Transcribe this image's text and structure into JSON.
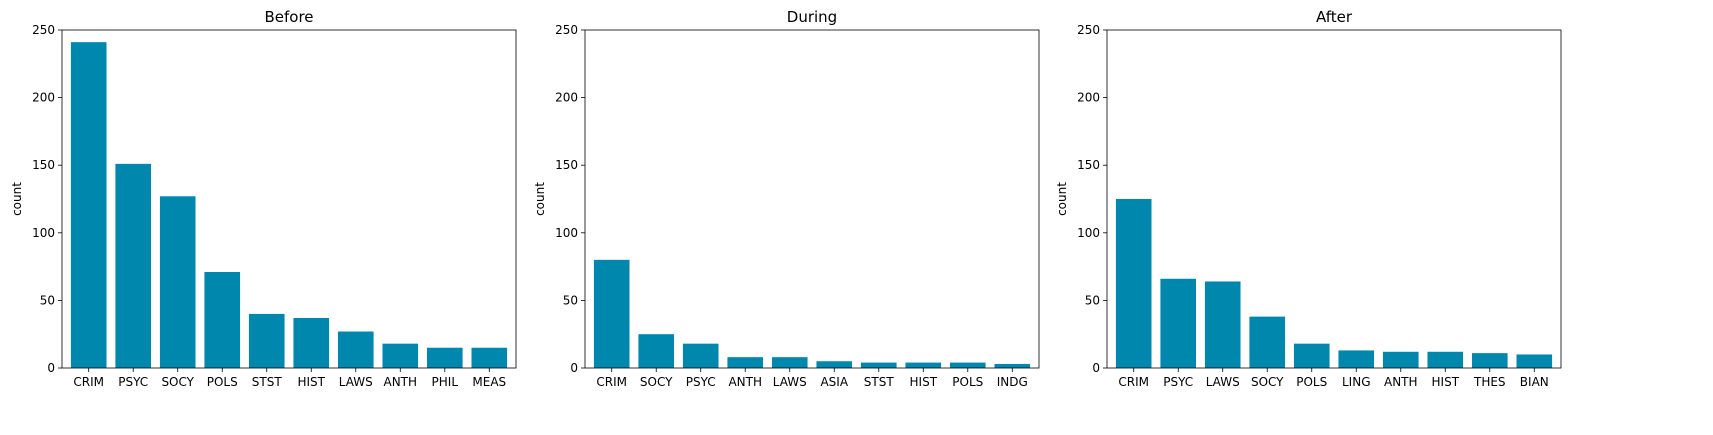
{
  "chart_data": [
    {
      "type": "bar",
      "title": "Before",
      "xlabel": "",
      "ylabel": "count",
      "ylim": [
        0,
        250
      ],
      "yticks": [
        0,
        50,
        100,
        150,
        200,
        250
      ],
      "grid": false,
      "bar_color": "#0087AE",
      "categories": [
        "CRIM",
        "PSYC",
        "SOCY",
        "POLS",
        "STST",
        "HIST",
        "LAWS",
        "ANTH",
        "PHIL",
        "MEAS"
      ],
      "values": [
        241,
        151,
        127,
        71,
        40,
        37,
        27,
        18,
        15,
        15
      ]
    },
    {
      "type": "bar",
      "title": "During",
      "xlabel": "",
      "ylabel": "count",
      "ylim": [
        0,
        250
      ],
      "yticks": [
        0,
        50,
        100,
        150,
        200,
        250
      ],
      "grid": false,
      "bar_color": "#0087AE",
      "categories": [
        "CRIM",
        "SOCY",
        "PSYC",
        "ANTH",
        "LAWS",
        "ASIA",
        "STST",
        "HIST",
        "POLS",
        "INDG"
      ],
      "values": [
        80,
        25,
        18,
        8,
        8,
        5,
        4,
        4,
        4,
        3
      ]
    },
    {
      "type": "bar",
      "title": "After",
      "xlabel": "",
      "ylabel": "count",
      "ylim": [
        0,
        250
      ],
      "yticks": [
        0,
        50,
        100,
        150,
        200,
        250
      ],
      "grid": false,
      "bar_color": "#0087AE",
      "categories": [
        "CRIM",
        "PSYC",
        "LAWS",
        "SOCY",
        "POLS",
        "LING",
        "ANTH",
        "HIST",
        "THES",
        "BIAN"
      ],
      "values": [
        125,
        66,
        64,
        38,
        18,
        13,
        12,
        12,
        11,
        10
      ]
    }
  ]
}
